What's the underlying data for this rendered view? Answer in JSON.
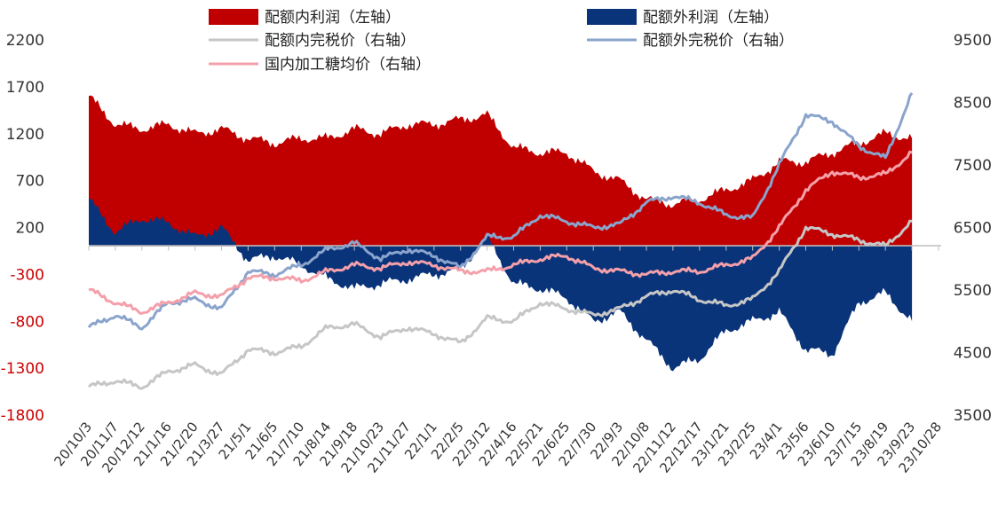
{
  "chart_data": {
    "type": "area",
    "title": "",
    "xlabel": "",
    "ylabel_left": "",
    "ylabel_right": "",
    "left_axis": {
      "min": -1800,
      "max": 2200,
      "ticks": [
        2200,
        1700,
        1200,
        700,
        200,
        -300,
        -800,
        -1300,
        -1800
      ]
    },
    "right_axis": {
      "min": 3500,
      "max": 9500,
      "ticks": [
        9500,
        8500,
        7500,
        6500,
        5500,
        4500,
        3500
      ]
    },
    "x_tick_labels": [
      "20/10/3",
      "20/11/7",
      "20/12/12",
      "21/1/16",
      "21/2/20",
      "21/3/27",
      "21/5/1",
      "21/6/5",
      "21/7/10",
      "21/8/14",
      "21/9/18",
      "21/10/23",
      "21/11/27",
      "22/1/1",
      "22/2/5",
      "22/3/12",
      "22/4/16",
      "22/5/21",
      "22/6/25",
      "22/7/30",
      "22/9/3",
      "22/10/8",
      "22/11/12",
      "22/12/17",
      "23/1/21",
      "23/2/25",
      "23/4/1",
      "23/5/6",
      "23/6/10",
      "23/7/15",
      "23/8/19",
      "23/9/23",
      "23/10/28"
    ],
    "legend_placement": "top",
    "grid": false,
    "series": [
      {
        "name": "配额内利润（左轴）",
        "axis": "left",
        "kind": "area",
        "color": "#c00000",
        "x": [
          "20/10/3",
          "20/11/7",
          "20/12/12",
          "21/1/16",
          "21/2/20",
          "21/3/27",
          "21/5/1",
          "21/6/5",
          "21/7/10",
          "21/8/14",
          "21/9/18",
          "21/10/23",
          "21/11/27",
          "22/1/1",
          "22/2/5",
          "22/3/12",
          "22/4/16",
          "22/5/21",
          "22/6/25",
          "22/7/30",
          "22/9/3",
          "22/10/8",
          "22/11/12",
          "22/12/17",
          "23/1/21",
          "23/2/25",
          "23/4/1",
          "23/5/6",
          "23/6/10",
          "23/7/15",
          "23/8/19",
          "23/9/23"
        ],
        "values": [
          1600,
          1300,
          1250,
          1300,
          1200,
          1250,
          1150,
          1100,
          1150,
          1150,
          1250,
          1200,
          1300,
          1300,
          1350,
          1400,
          1050,
          1000,
          1000,
          800,
          700,
          500,
          450,
          500,
          600,
          700,
          900,
          900,
          1000,
          1100,
          1200,
          1150
        ]
      },
      {
        "name": "配额外利润（左轴）",
        "axis": "left",
        "kind": "area",
        "color": "#0a347a",
        "x": [
          "20/10/3",
          "20/11/7",
          "20/12/12",
          "21/1/16",
          "21/2/20",
          "21/3/27",
          "21/5/1",
          "21/6/5",
          "21/7/10",
          "21/8/14",
          "21/9/18",
          "21/10/23",
          "21/11/27",
          "22/1/1",
          "22/2/5",
          "22/3/12",
          "22/4/16",
          "22/5/21",
          "22/6/25",
          "22/7/30",
          "22/9/3",
          "22/10/8",
          "22/11/12",
          "22/12/17",
          "23/1/21",
          "23/2/25",
          "23/4/1",
          "23/5/6",
          "23/6/10",
          "23/7/15",
          "23/8/19",
          "23/9/23"
        ],
        "values": [
          500,
          150,
          300,
          250,
          100,
          200,
          -150,
          -100,
          -200,
          -350,
          -450,
          -400,
          -350,
          -300,
          -250,
          100,
          -400,
          -450,
          -550,
          -800,
          -700,
          -1000,
          -1300,
          -1200,
          -900,
          -800,
          -700,
          -1100,
          -1150,
          -600,
          -500,
          -800
        ]
      },
      {
        "name": "配额内完税价（右轴）",
        "axis": "right",
        "kind": "line",
        "color": "#c6c6c6",
        "x": [
          "20/10/3",
          "20/11/7",
          "20/12/12",
          "21/1/16",
          "21/2/20",
          "21/3/27",
          "21/5/1",
          "21/6/5",
          "21/7/10",
          "21/8/14",
          "21/9/18",
          "21/10/23",
          "21/11/27",
          "22/1/1",
          "22/2/5",
          "22/3/12",
          "22/4/16",
          "22/5/21",
          "22/6/25",
          "22/7/30",
          "22/9/3",
          "22/10/8",
          "22/11/12",
          "22/12/17",
          "23/1/21",
          "23/2/25",
          "23/4/1",
          "23/5/6",
          "23/6/10",
          "23/7/15",
          "23/8/19",
          "23/9/23"
        ],
        "values": [
          3950,
          4050,
          3950,
          4200,
          4300,
          4150,
          4550,
          4500,
          4600,
          4900,
          4950,
          4750,
          4900,
          4800,
          4650,
          5050,
          5000,
          5300,
          5200,
          5100,
          5200,
          5400,
          5500,
          5350,
          5250,
          5350,
          5800,
          6500,
          6400,
          6300,
          6200,
          6600
        ]
      },
      {
        "name": "配额外完税价（右轴）",
        "axis": "right",
        "kind": "line",
        "color": "#8aa4cc",
        "x": [
          "20/10/3",
          "20/11/7",
          "20/12/12",
          "21/1/16",
          "21/2/20",
          "21/3/27",
          "21/5/1",
          "21/6/5",
          "21/7/10",
          "21/8/14",
          "21/9/18",
          "21/10/23",
          "21/11/27",
          "22/1/1",
          "22/2/5",
          "22/3/12",
          "22/4/16",
          "22/5/21",
          "22/6/25",
          "22/7/30",
          "22/9/3",
          "22/10/8",
          "22/11/12",
          "22/12/17",
          "23/1/21",
          "23/2/25",
          "23/4/1",
          "23/5/6",
          "23/6/10",
          "23/7/15",
          "23/8/19",
          "23/9/23"
        ],
        "values": [
          4900,
          5100,
          4900,
          5300,
          5350,
          5200,
          5800,
          5750,
          5900,
          6150,
          6250,
          6000,
          6150,
          6050,
          5850,
          6350,
          6350,
          6700,
          6600,
          6500,
          6550,
          6900,
          7000,
          6900,
          6700,
          6650,
          7500,
          8300,
          8200,
          7800,
          7600,
          8650
        ]
      },
      {
        "name": "国内加工糖均价（右轴）",
        "axis": "right",
        "kind": "line",
        "color": "#f4a0aa",
        "x": [
          "20/10/3",
          "20/11/7",
          "20/12/12",
          "21/1/16",
          "21/2/20",
          "21/3/27",
          "21/5/1",
          "21/6/5",
          "21/7/10",
          "21/8/14",
          "21/9/18",
          "21/10/23",
          "21/11/27",
          "22/1/1",
          "22/2/5",
          "22/3/12",
          "22/4/16",
          "22/5/21",
          "22/6/25",
          "22/7/30",
          "22/9/3",
          "22/10/8",
          "22/11/12",
          "22/12/17",
          "23/1/21",
          "23/2/25",
          "23/4/1",
          "23/5/6",
          "23/6/10",
          "23/7/15",
          "23/8/19",
          "23/9/23"
        ],
        "values": [
          5500,
          5300,
          5150,
          5300,
          5450,
          5400,
          5700,
          5700,
          5650,
          5800,
          5900,
          5850,
          5950,
          5900,
          5800,
          5800,
          5900,
          6000,
          6050,
          5850,
          5800,
          5750,
          5800,
          5800,
          5900,
          6000,
          6500,
          7100,
          7400,
          7300,
          7350,
          7700
        ]
      }
    ]
  }
}
